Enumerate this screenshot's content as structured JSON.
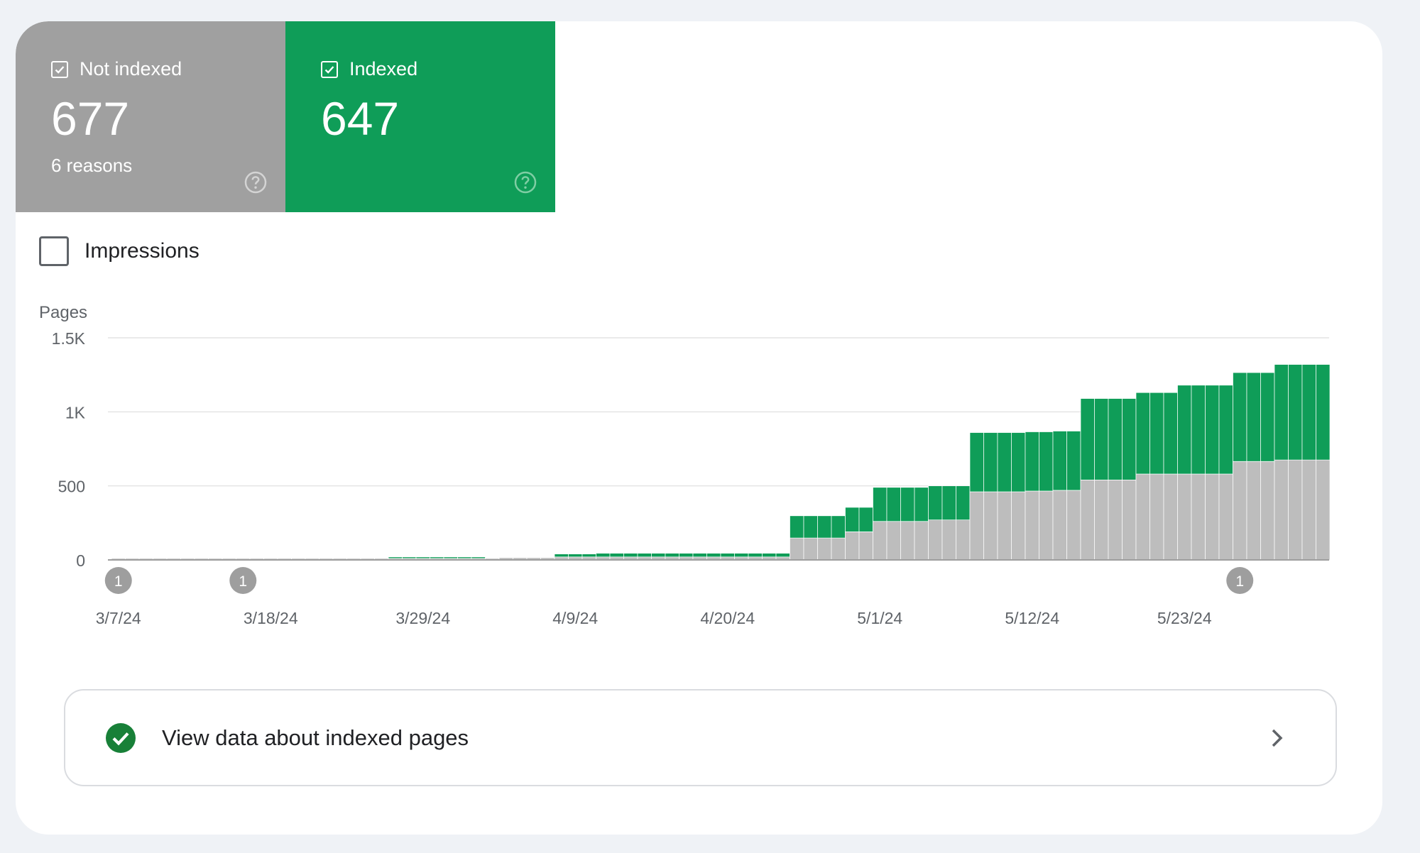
{
  "tiles": {
    "not_indexed": {
      "label": "Not indexed",
      "count": "677",
      "sub": "6 reasons",
      "color": "#a0a0a0"
    },
    "indexed": {
      "label": "Indexed",
      "count": "647",
      "color": "#0f9d58"
    }
  },
  "impressions_label": "Impressions",
  "view_button_label": "View data about indexed pages",
  "chart_data": {
    "type": "bar",
    "stacked": true,
    "ylabel": "Pages",
    "ylim": [
      0,
      1500
    ],
    "yticks": [
      {
        "value": 0,
        "label": "0"
      },
      {
        "value": 500,
        "label": "500"
      },
      {
        "value": 1000,
        "label": "1K"
      },
      {
        "value": 1500,
        "label": "1.5K"
      }
    ],
    "x_start": "3/7/24",
    "x_end": "5/31/24",
    "x_tick_labels": [
      "3/7/24",
      "3/18/24",
      "3/29/24",
      "4/9/24",
      "4/20/24",
      "5/1/24",
      "5/12/24",
      "5/23/24"
    ],
    "annotations": [
      {
        "x": "3/7/24",
        "label": "1"
      },
      {
        "x": "3/16/24",
        "label": "1"
      },
      {
        "x": "5/27/24",
        "label": "1"
      }
    ],
    "grid": true,
    "series": [
      {
        "name": "Not indexed",
        "color": "#bdbdbd",
        "values": [
          10,
          10,
          10,
          10,
          10,
          10,
          10,
          10,
          10,
          10,
          10,
          10,
          10,
          10,
          10,
          10,
          10,
          10,
          10,
          10,
          10,
          10,
          10,
          10,
          10,
          10,
          10,
          10,
          15,
          15,
          15,
          15,
          20,
          20,
          20,
          20,
          20,
          20,
          20,
          20,
          20,
          20,
          20,
          20,
          20,
          20,
          20,
          20,
          20,
          148,
          148,
          148,
          148,
          190,
          190,
          260,
          260,
          260,
          260,
          270,
          270,
          270,
          460,
          460,
          460,
          460,
          465,
          465,
          470,
          470,
          540,
          540,
          540,
          540,
          580,
          580,
          580,
          580,
          580,
          580,
          580,
          665,
          665,
          665,
          675,
          675,
          675,
          675
        ]
      },
      {
        "name": "Indexed",
        "color": "#0f9d58",
        "values": [
          0,
          0,
          0,
          0,
          0,
          0,
          0,
          0,
          0,
          0,
          0,
          0,
          0,
          0,
          0,
          0,
          0,
          0,
          0,
          0,
          10,
          10,
          10,
          10,
          10,
          10,
          10,
          0,
          0,
          0,
          0,
          0,
          20,
          20,
          20,
          25,
          25,
          25,
          25,
          25,
          25,
          25,
          25,
          25,
          25,
          25,
          25,
          25,
          25,
          150,
          150,
          150,
          150,
          165,
          165,
          230,
          230,
          230,
          230,
          230,
          230,
          230,
          400,
          400,
          400,
          400,
          400,
          400,
          400,
          400,
          550,
          550,
          550,
          550,
          550,
          550,
          550,
          600,
          600,
          600,
          600,
          600,
          600,
          600,
          645,
          645,
          645,
          645
        ]
      }
    ]
  }
}
